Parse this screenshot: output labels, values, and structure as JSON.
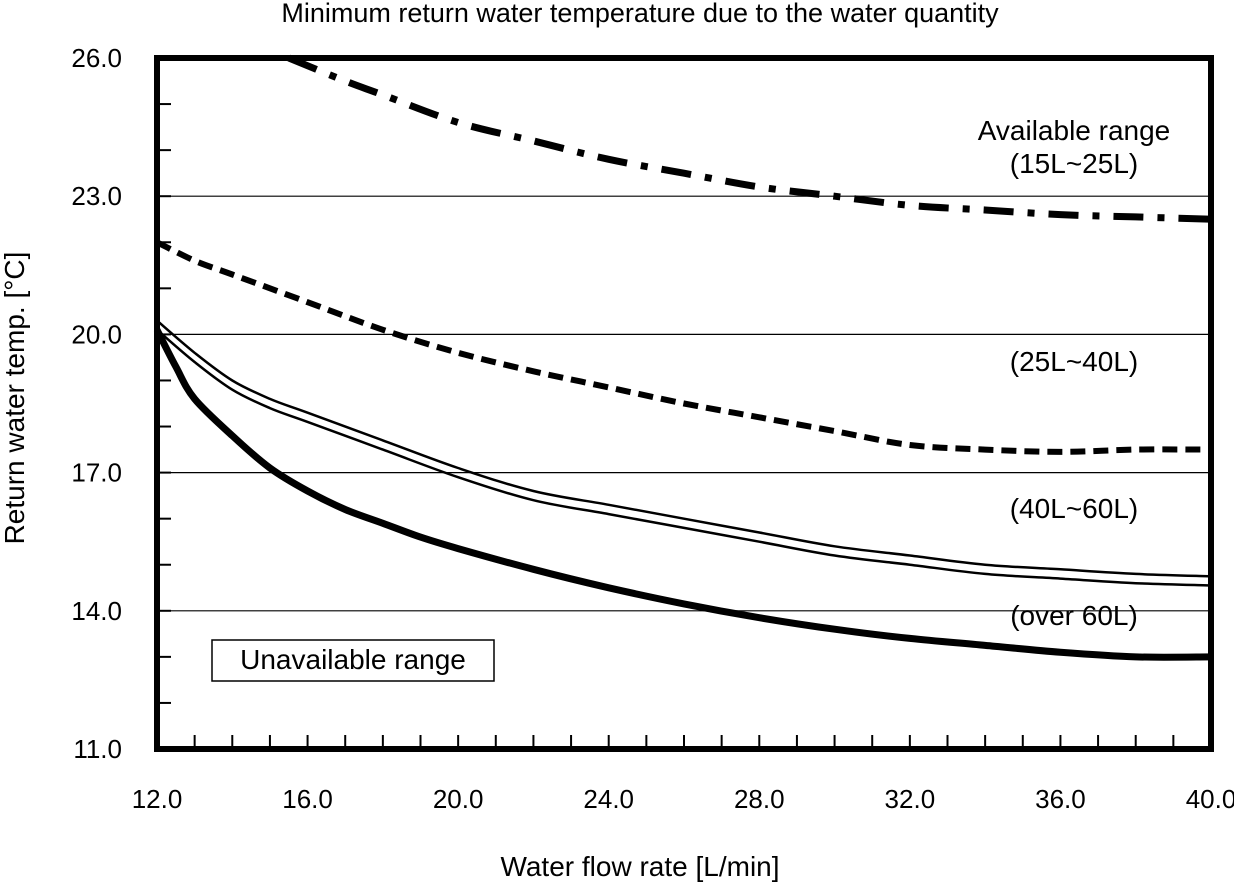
{
  "chart_data": {
    "type": "line",
    "title": "Minimum return water temperature due to the water quantity",
    "xlabel": "Water flow rate [L/min]",
    "ylabel": "Return water temp. [°C]",
    "xlim": [
      12,
      40
    ],
    "ylim": [
      11,
      26
    ],
    "x_ticks": [
      "12.0",
      "16.0",
      "20.0",
      "24.0",
      "28.0",
      "32.0",
      "36.0",
      "40.0"
    ],
    "y_ticks": [
      "11.0",
      "14.0",
      "17.0",
      "20.0",
      "23.0",
      "26.0"
    ],
    "gridlines_y": [
      14,
      17,
      20,
      23
    ],
    "series": [
      {
        "name": "(15L~25L)",
        "style": "dash-dot",
        "x": [
          15.5,
          17,
          18,
          20,
          22,
          24,
          26,
          28,
          30,
          32,
          34,
          36,
          38,
          40
        ],
        "y": [
          26.0,
          25.5,
          25.2,
          24.6,
          24.2,
          23.8,
          23.5,
          23.2,
          23.0,
          22.8,
          22.7,
          22.6,
          22.55,
          22.5
        ]
      },
      {
        "name": "(25L~40L)",
        "style": "dashed",
        "x": [
          12,
          13,
          14,
          16,
          18,
          20,
          22,
          24,
          26,
          28,
          30,
          32,
          34,
          36,
          38,
          40
        ],
        "y": [
          22.0,
          21.6,
          21.3,
          20.7,
          20.1,
          19.6,
          19.2,
          18.85,
          18.5,
          18.2,
          17.9,
          17.6,
          17.5,
          17.45,
          17.5,
          17.5
        ]
      },
      {
        "name": "(40L~60L) upper",
        "style": "solid-thin",
        "x": [
          12,
          13,
          14,
          15,
          16,
          18,
          20,
          22,
          24,
          26,
          28,
          30,
          32,
          34,
          36,
          38,
          40
        ],
        "y": [
          20.3,
          19.6,
          19.0,
          18.6,
          18.3,
          17.7,
          17.1,
          16.6,
          16.3,
          16.0,
          15.7,
          15.4,
          15.2,
          15.0,
          14.9,
          14.8,
          14.75
        ]
      },
      {
        "name": "(40L~60L) lower",
        "style": "solid-thin",
        "x": [
          12,
          13,
          14,
          15,
          16,
          18,
          20,
          22,
          24,
          26,
          28,
          30,
          32,
          34,
          36,
          38,
          40
        ],
        "y": [
          20.1,
          19.4,
          18.8,
          18.4,
          18.1,
          17.5,
          16.9,
          16.4,
          16.1,
          15.8,
          15.5,
          15.2,
          15.0,
          14.8,
          14.7,
          14.6,
          14.55
        ]
      },
      {
        "name": "(over 60L)",
        "style": "solid-thick",
        "x": [
          12,
          12.5,
          13,
          14,
          15,
          16,
          17,
          18,
          19,
          20,
          22,
          24,
          26,
          28,
          30,
          32,
          34,
          36,
          38,
          40
        ],
        "y": [
          20.1,
          19.3,
          18.6,
          17.8,
          17.1,
          16.6,
          16.2,
          15.9,
          15.6,
          15.35,
          14.9,
          14.5,
          14.15,
          13.85,
          13.6,
          13.4,
          13.25,
          13.1,
          13.0,
          13.0
        ]
      }
    ],
    "annotations": {
      "available_range": "Available range",
      "r15_25": "(15L~25L)",
      "r25_40": "(25L~40L)",
      "r40_60": "(40L~60L)",
      "over60": "(over 60L)",
      "unavailable_range": "Unavailable range"
    }
  }
}
